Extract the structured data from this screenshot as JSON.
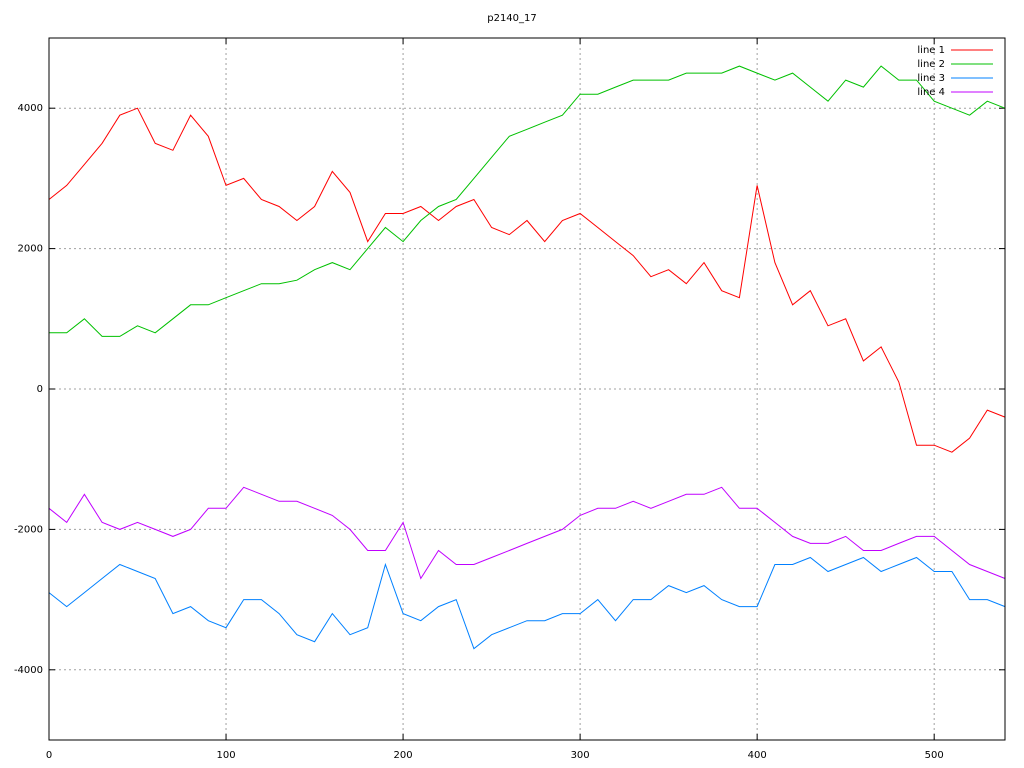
{
  "chart_data": {
    "type": "line",
    "title": "p2140_17",
    "x": [
      0,
      10,
      20,
      30,
      40,
      50,
      60,
      70,
      80,
      90,
      100,
      110,
      120,
      130,
      140,
      150,
      160,
      170,
      180,
      190,
      200,
      210,
      220,
      230,
      240,
      250,
      260,
      270,
      280,
      290,
      300,
      310,
      320,
      330,
      340,
      350,
      360,
      370,
      380,
      390,
      400,
      410,
      420,
      430,
      440,
      450,
      460,
      470,
      480,
      490,
      500,
      510,
      520,
      530,
      540
    ],
    "series": [
      {
        "name": "line 1",
        "color": "#ff0000",
        "values": [
          2700,
          2900,
          3200,
          3500,
          3900,
          4000,
          3500,
          3400,
          3900,
          3600,
          2900,
          3000,
          2700,
          2600,
          2400,
          2600,
          3100,
          2800,
          2100,
          2500,
          2500,
          2600,
          2400,
          2600,
          2700,
          2300,
          2200,
          2400,
          2100,
          2400,
          2500,
          2300,
          2100,
          1900,
          1600,
          1700,
          1500,
          1800,
          1400,
          1300,
          2900,
          1800,
          1200,
          1400,
          900,
          1000,
          400,
          600,
          100,
          -800,
          -800,
          -900,
          -700,
          -300,
          -400
        ]
      },
      {
        "name": "line 2",
        "color": "#00c000",
        "values": [
          800,
          800,
          1000,
          750,
          750,
          900,
          800,
          1000,
          1200,
          1200,
          1300,
          1400,
          1500,
          1500,
          1550,
          1700,
          1800,
          1700,
          2000,
          2300,
          2100,
          2400,
          2600,
          2700,
          3000,
          3300,
          3600,
          3700,
          3800,
          3900,
          4200,
          4200,
          4300,
          4400,
          4400,
          4400,
          4500,
          4500,
          4500,
          4600,
          4500,
          4400,
          4500,
          4300,
          4100,
          4400,
          4300,
          4600,
          4400,
          4400,
          4100,
          4000,
          3900,
          4100,
          4000
        ]
      },
      {
        "name": "line 3",
        "color": "#0080ff",
        "values": [
          -2900,
          -3100,
          -2900,
          -2700,
          -2500,
          -2600,
          -2700,
          -3200,
          -3100,
          -3300,
          -3400,
          -3000,
          -3000,
          -3200,
          -3500,
          -3600,
          -3200,
          -3500,
          -3400,
          -2500,
          -3200,
          -3300,
          -3100,
          -3000,
          -3700,
          -3500,
          -3400,
          -3300,
          -3300,
          -3200,
          -3200,
          -3000,
          -3300,
          -3000,
          -3000,
          -2800,
          -2900,
          -2800,
          -3000,
          -3100,
          -3100,
          -2500,
          -2500,
          -2400,
          -2600,
          -2500,
          -2400,
          -2600,
          -2500,
          -2400,
          -2600,
          -2600,
          -3000,
          -3000,
          -3100
        ]
      },
      {
        "name": "line 4",
        "color": "#c000ff",
        "values": [
          -1700,
          -1900,
          -1500,
          -1900,
          -2000,
          -1900,
          -2000,
          -2100,
          -2000,
          -1700,
          -1700,
          -1400,
          -1500,
          -1600,
          -1600,
          -1700,
          -1800,
          -2000,
          -2300,
          -2300,
          -1900,
          -2700,
          -2300,
          -2500,
          -2500,
          -2400,
          -2300,
          -2200,
          -2100,
          -2000,
          -1800,
          -1700,
          -1700,
          -1600,
          -1700,
          -1600,
          -1500,
          -1500,
          -1400,
          -1700,
          -1700,
          -1900,
          -2100,
          -2200,
          -2200,
          -2100,
          -2300,
          -2300,
          -2200,
          -2100,
          -2100,
          -2300,
          -2500,
          -2600,
          -2700
        ]
      }
    ],
    "xlim": [
      0,
      540
    ],
    "xticks": [
      0,
      100,
      200,
      300,
      400,
      500
    ],
    "ylim": [
      -5000,
      5000
    ],
    "yticks": [
      -4000,
      -2000,
      0,
      2000,
      4000
    ],
    "grid": true,
    "legend": "top right"
  }
}
